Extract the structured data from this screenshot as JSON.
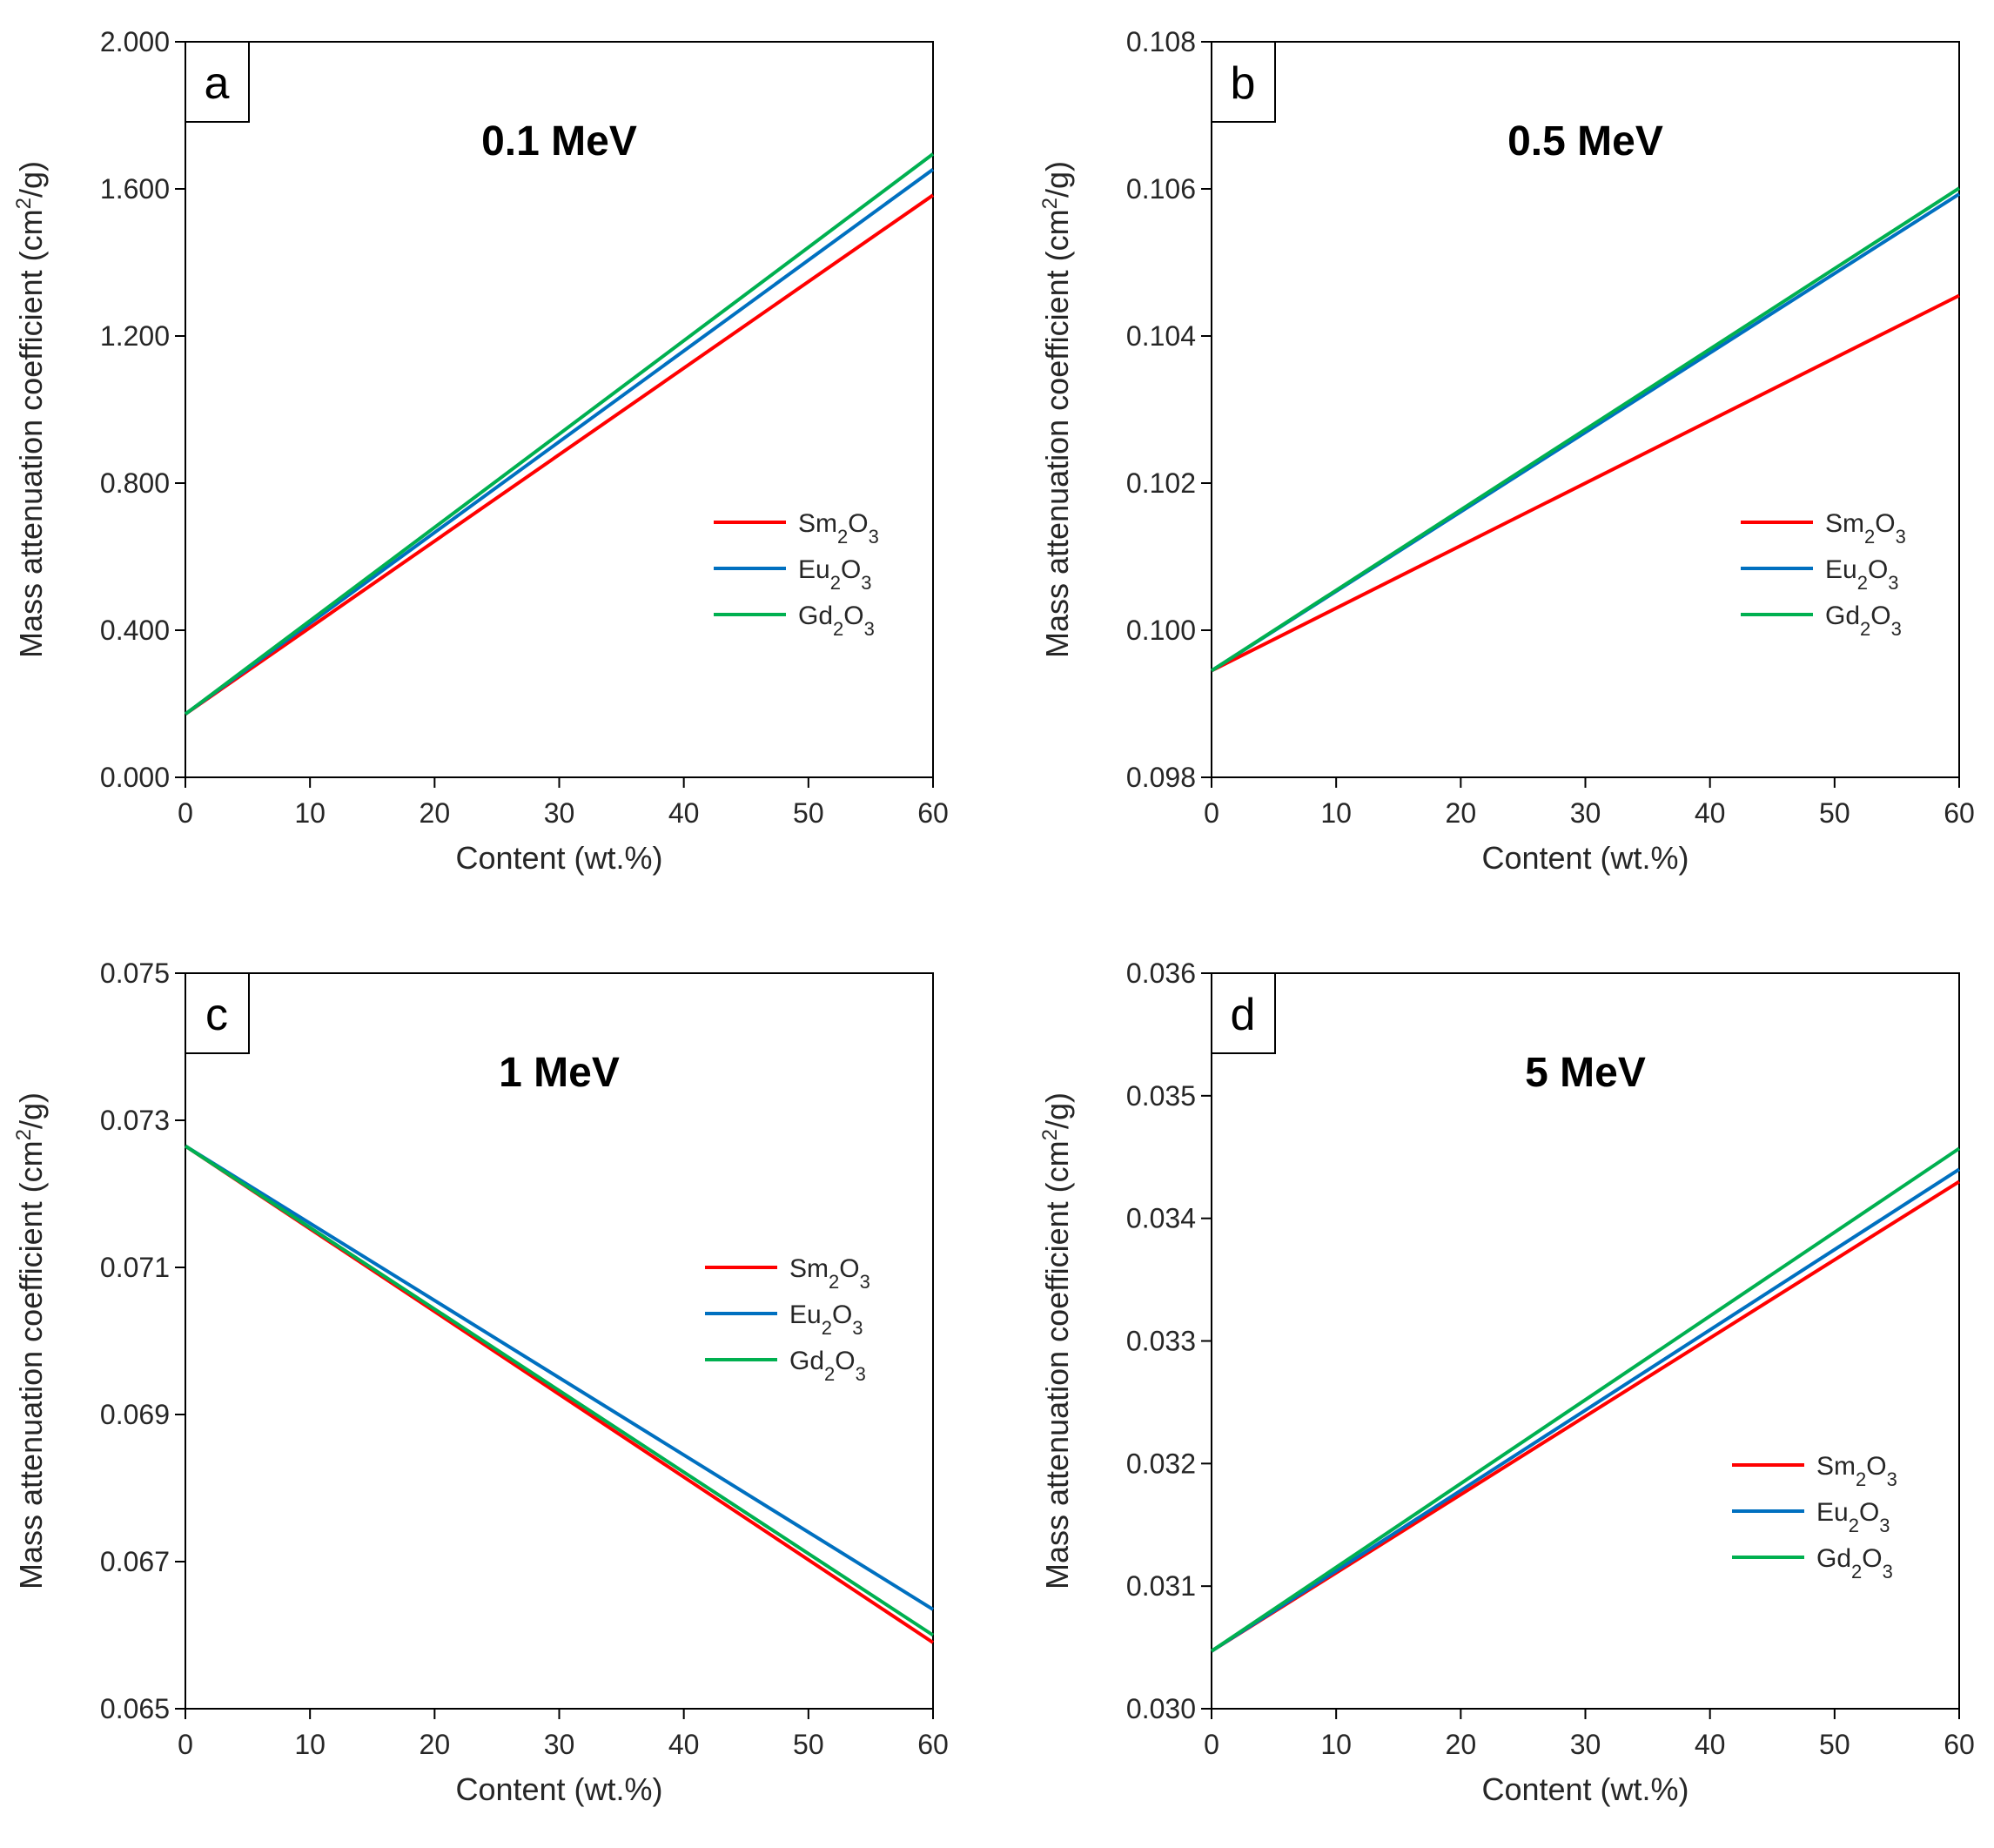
{
  "chart_data": [
    {
      "type": "line",
      "panel_label": "a",
      "title": "0.1 MeV",
      "xlabel": "Content (wt.%)",
      "ylabel": "Mass attenuation coefficient (cm",
      "ylabel_sup": "2",
      "ylabel_tail": "/g)",
      "xlim": [
        0,
        60
      ],
      "ylim": [
        0,
        2
      ],
      "xticks": [
        0,
        10,
        20,
        30,
        40,
        50,
        60
      ],
      "xtick_labels": [
        "0",
        "10",
        "20",
        "30",
        "40",
        "50",
        "60"
      ],
      "yticks": [
        0,
        0.4,
        0.8,
        1.2,
        1.6,
        2.0
      ],
      "ytick_labels": [
        "0.000",
        "0.400",
        "0.800",
        "1.200",
        "1.600",
        "2.000"
      ],
      "legend_position": "middle-right",
      "series": [
        {
          "name": "Sm2O3",
          "label_main": "Sm",
          "sub1": "2",
          "mid": "O",
          "sub2": "3",
          "color": "#ff0000",
          "x": [
            0,
            60
          ],
          "y": [
            0.172,
            1.583
          ]
        },
        {
          "name": "Eu2O3",
          "label_main": "Eu",
          "sub1": "2",
          "mid": "O",
          "sub2": "3",
          "color": "#0070c0",
          "x": [
            0,
            60
          ],
          "y": [
            0.172,
            1.653
          ]
        },
        {
          "name": "Gd2O3",
          "label_main": "Gd",
          "sub1": "2",
          "mid": "O",
          "sub2": "3",
          "color": "#00b050",
          "x": [
            0,
            60
          ],
          "y": [
            0.172,
            1.695
          ]
        }
      ]
    },
    {
      "type": "line",
      "panel_label": "b",
      "title": "0.5 MeV",
      "xlabel": "Content (wt.%)",
      "ylabel": "Mass attenuation coefficient (cm",
      "ylabel_sup": "2",
      "ylabel_tail": "/g)",
      "xlim": [
        0,
        60
      ],
      "ylim": [
        0.098,
        0.108
      ],
      "xticks": [
        0,
        10,
        20,
        30,
        40,
        50,
        60
      ],
      "xtick_labels": [
        "0",
        "10",
        "20",
        "30",
        "40",
        "50",
        "60"
      ],
      "yticks": [
        0.098,
        0.1,
        0.102,
        0.104,
        0.106,
        0.108
      ],
      "ytick_labels": [
        "0.098",
        "0.100",
        "0.102",
        "0.104",
        "0.106",
        "0.108"
      ],
      "legend_position": "middle-right",
      "series": [
        {
          "name": "Sm2O3",
          "label_main": "Sm",
          "sub1": "2",
          "mid": "O",
          "sub2": "3",
          "color": "#ff0000",
          "x": [
            0,
            60
          ],
          "y": [
            0.09945,
            0.10455
          ]
        },
        {
          "name": "Eu2O3",
          "label_main": "Eu",
          "sub1": "2",
          "mid": "O",
          "sub2": "3",
          "color": "#0070c0",
          "x": [
            0,
            60
          ],
          "y": [
            0.09945,
            0.10593
          ]
        },
        {
          "name": "Gd2O3",
          "label_main": "Gd",
          "sub1": "2",
          "mid": "O",
          "sub2": "3",
          "color": "#00b050",
          "x": [
            0,
            60
          ],
          "y": [
            0.09945,
            0.10601
          ]
        }
      ]
    },
    {
      "type": "line",
      "panel_label": "c",
      "title": "1 MeV",
      "xlabel": "Content (wt.%)",
      "ylabel": "Mass attenuation coefficient (cm",
      "ylabel_sup": "2",
      "ylabel_tail": "/g)",
      "xlim": [
        0,
        60
      ],
      "ylim": [
        0.065,
        0.075
      ],
      "xticks": [
        0,
        10,
        20,
        30,
        40,
        50,
        60
      ],
      "xtick_labels": [
        "0",
        "10",
        "20",
        "30",
        "40",
        "50",
        "60"
      ],
      "yticks": [
        0.065,
        0.067,
        0.069,
        0.071,
        0.073,
        0.075
      ],
      "ytick_labels": [
        "0.065",
        "0.067",
        "0.069",
        "0.071",
        "0.073",
        "0.075"
      ],
      "legend_position": "middle-right",
      "series": [
        {
          "name": "Sm2O3",
          "label_main": "Sm",
          "sub1": "2",
          "mid": "O",
          "sub2": "3",
          "color": "#ff0000",
          "x": [
            0,
            60
          ],
          "y": [
            0.07265,
            0.0659
          ]
        },
        {
          "name": "Eu2O3",
          "label_main": "Eu",
          "sub1": "2",
          "mid": "O",
          "sub2": "3",
          "color": "#0070c0",
          "x": [
            0,
            60
          ],
          "y": [
            0.07265,
            0.06635
          ]
        },
        {
          "name": "Gd2O3",
          "label_main": "Gd",
          "sub1": "2",
          "mid": "O",
          "sub2": "3",
          "color": "#00b050",
          "x": [
            0,
            60
          ],
          "y": [
            0.07265,
            0.066
          ]
        }
      ]
    },
    {
      "type": "line",
      "panel_label": "d",
      "title": "5 MeV",
      "xlabel": "Content (wt.%)",
      "ylabel": "Mass attenuation coefficient (cm",
      "ylabel_sup": "2",
      "ylabel_tail": "/g)",
      "xlim": [
        0,
        60
      ],
      "ylim": [
        0.03,
        0.036
      ],
      "xticks": [
        0,
        10,
        20,
        30,
        40,
        50,
        60
      ],
      "xtick_labels": [
        "0",
        "10",
        "20",
        "30",
        "40",
        "50",
        "60"
      ],
      "yticks": [
        0.03,
        0.031,
        0.032,
        0.033,
        0.034,
        0.035,
        0.036
      ],
      "ytick_labels": [
        "0.030",
        "0.031",
        "0.032",
        "0.033",
        "0.034",
        "0.035",
        "0.036"
      ],
      "legend_position": "lower-right",
      "series": [
        {
          "name": "Sm2O3",
          "label_main": "Sm",
          "sub1": "2",
          "mid": "O",
          "sub2": "3",
          "color": "#ff0000",
          "x": [
            0,
            60
          ],
          "y": [
            0.03047,
            0.0343
          ]
        },
        {
          "name": "Eu2O3",
          "label_main": "Eu",
          "sub1": "2",
          "mid": "O",
          "sub2": "3",
          "color": "#0070c0",
          "x": [
            0,
            60
          ],
          "y": [
            0.03047,
            0.0344
          ]
        },
        {
          "name": "Gd2O3",
          "label_main": "Gd",
          "sub1": "2",
          "mid": "O",
          "sub2": "3",
          "color": "#00b050",
          "x": [
            0,
            60
          ],
          "y": [
            0.03047,
            0.03457
          ]
        }
      ]
    }
  ]
}
